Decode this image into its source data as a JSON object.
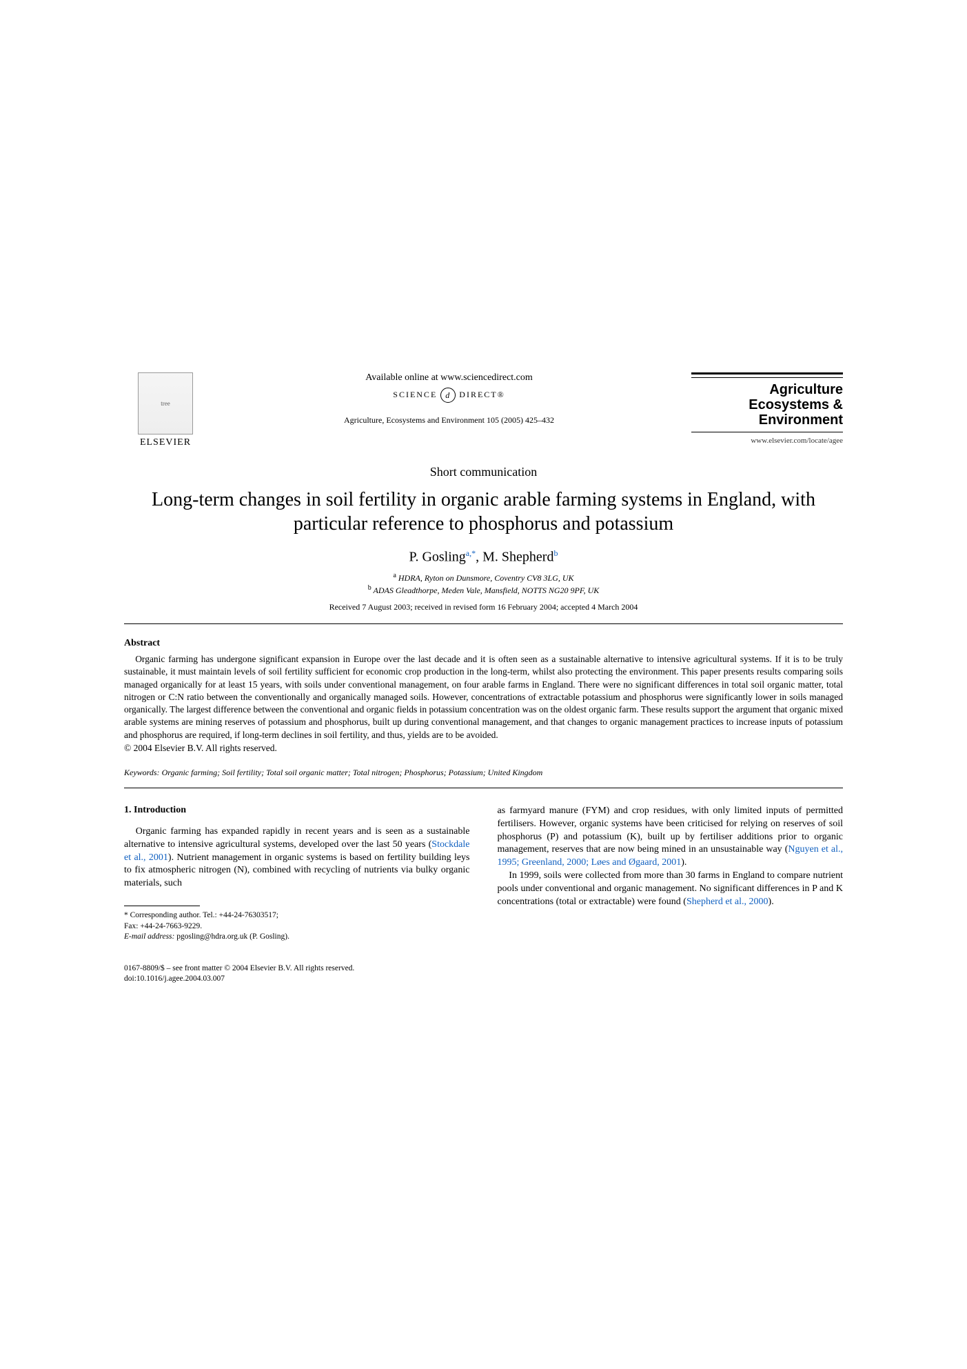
{
  "publisher": {
    "name": "ELSEVIER",
    "logo_alt": "tree"
  },
  "header": {
    "available_online": "Available online at www.sciencedirect.com",
    "science_direct_prefix": "SCIENCE",
    "science_direct_d": "d",
    "science_direct_suffix": "DIRECT®",
    "journal_ref": "Agriculture, Ecosystems and Environment 105 (2005) 425–432"
  },
  "journal": {
    "title_line1": "Agriculture",
    "title_line2": "Ecosystems &",
    "title_line3": "Environment",
    "url": "www.elsevier.com/locate/agee"
  },
  "article": {
    "type": "Short communication",
    "title": "Long-term changes in soil fertility in organic arable farming systems in England, with particular reference to phosphorus and potassium",
    "authors_html": "P. Gosling",
    "author1_sup": "a,",
    "author1_star": "*",
    "author2": ", M. Shepherd",
    "author2_sup": "b",
    "affiliations": {
      "a": "HDRA, Ryton on Dunsmore, Coventry CV8 3LG, UK",
      "b": "ADAS Gleadthorpe, Meden Vale, Mansfield, NOTTS NG20 9PF, UK"
    },
    "dates": "Received 7 August 2003; received in revised form 16 February 2004; accepted 4 March 2004"
  },
  "abstract": {
    "heading": "Abstract",
    "text": "Organic farming has undergone significant expansion in Europe over the last decade and it is often seen as a sustainable alternative to intensive agricultural systems. If it is to be truly sustainable, it must maintain levels of soil fertility sufficient for economic crop production in the long-term, whilst also protecting the environment. This paper presents results comparing soils managed organically for at least 15 years, with soils under conventional management, on four arable farms in England. There were no significant differences in total soil organic matter, total nitrogen or C:N ratio between the conventionally and organically managed soils. However, concentrations of extractable potassium and phosphorus were significantly lower in soils managed organically. The largest difference between the conventional and organic fields in potassium concentration was on the oldest organic farm. These results support the argument that organic mixed arable systems are mining reserves of potassium and phosphorus, built up during conventional management, and that changes to organic management practices to increase inputs of potassium and phosphorus are required, if long-term declines in soil fertility, and thus, yields are to be avoided.",
    "copyright": "© 2004 Elsevier B.V. All rights reserved."
  },
  "keywords": {
    "label": "Keywords:",
    "text": " Organic farming; Soil fertility; Total soil organic matter; Total nitrogen; Phosphorus; Potassium; United Kingdom"
  },
  "intro": {
    "heading": "1. Introduction",
    "col1_p1_a": "Organic farming has expanded rapidly in recent years and is seen as a sustainable alternative to intensive agricultural systems, developed over the last 50 years (",
    "col1_ref1": "Stockdale et al., 2001",
    "col1_p1_b": "). Nutrient management in organic systems is based on fertility building leys to fix atmospheric nitrogen (N), combined with recycling of nutrients via bulky organic materials, such",
    "col2_p1_a": "as farmyard manure (FYM) and crop residues, with only limited inputs of permitted fertilisers. However, organic systems have been criticised for relying on reserves of soil phosphorus (P) and potassium (K), built up by fertiliser additions prior to organic management, reserves that are now being mined in an unsustainable way (",
    "col2_ref1": "Nguyen et al., 1995; Greenland, 2000; Løes and Øgaard, 2001",
    "col2_p1_b": ").",
    "col2_p2_a": "In 1999, soils were collected from more than 30 farms in England to compare nutrient pools under conventional and organic management. No significant differences in P and K concentrations (total or extractable) were found (",
    "col2_ref2": "Shepherd et al., 2000",
    "col2_p2_b": ")."
  },
  "footnote": {
    "corresponding": "* Corresponding author. Tel.: +44-24-76303517;",
    "fax": "Fax: +44-24-7663-9229.",
    "email_label": "E-mail address:",
    "email": " pgosling@hdra.org.uk (P. Gosling)."
  },
  "footer": {
    "line1": "0167-8809/$ – see front matter © 2004 Elsevier B.V. All rights reserved.",
    "line2": "doi:10.1016/j.agee.2004.03.007"
  },
  "colors": {
    "link": "#1060c0",
    "text": "#000000",
    "background": "#ffffff"
  }
}
